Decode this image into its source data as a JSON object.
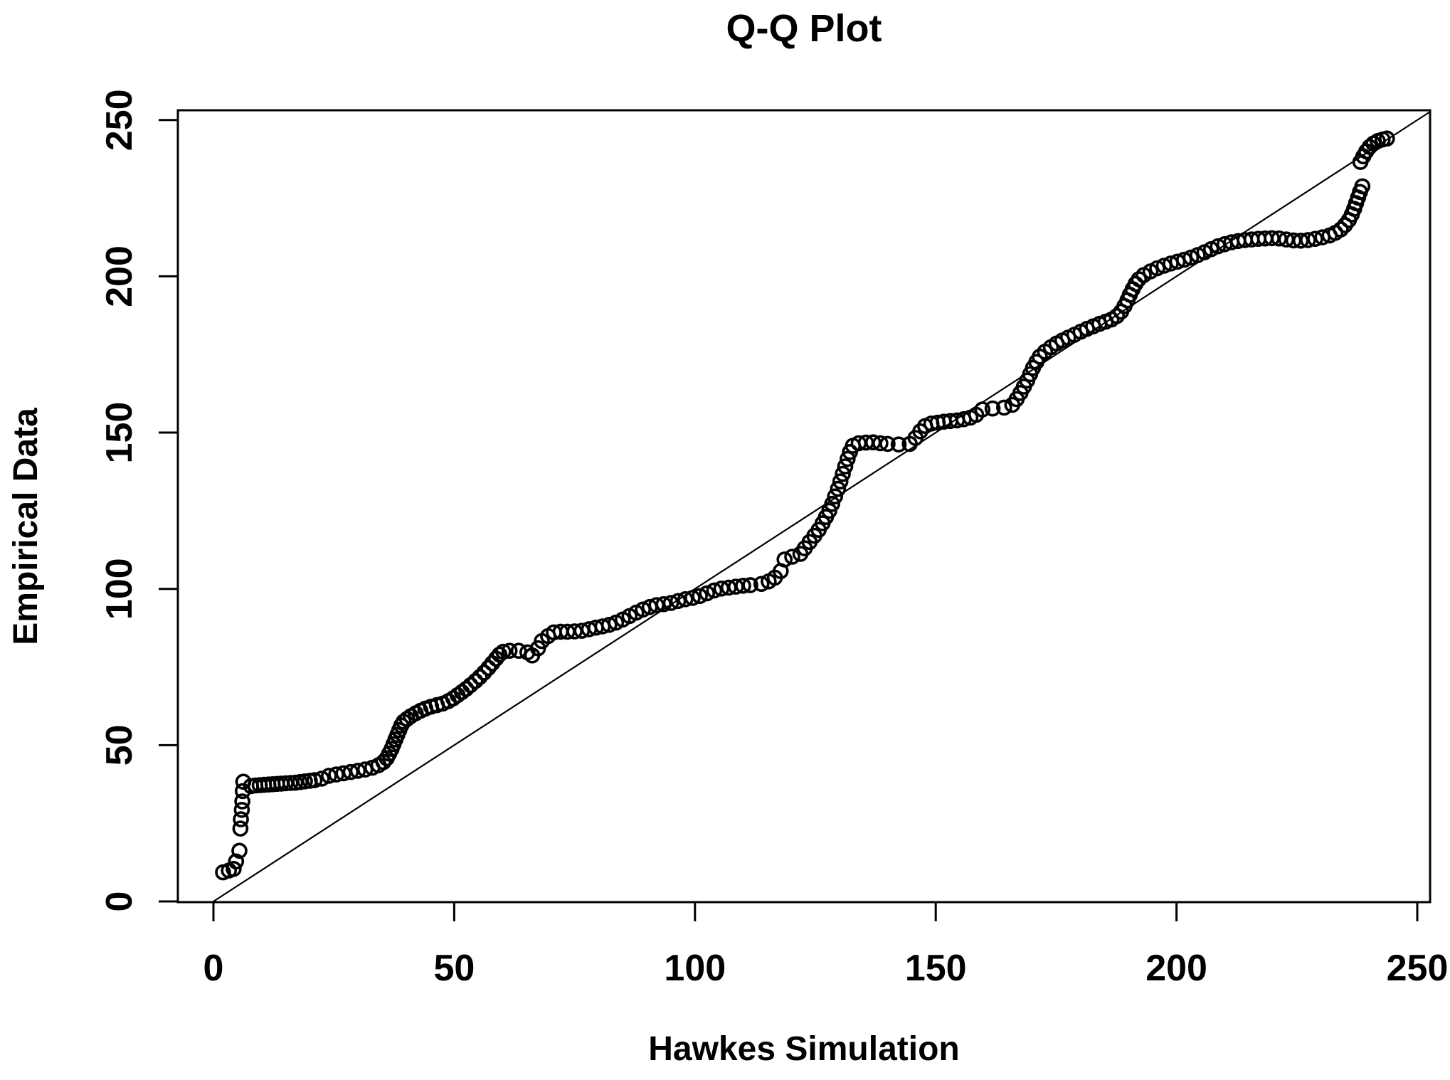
{
  "chart_data": {
    "type": "scatter",
    "title": "Q-Q Plot",
    "xlabel": "Hawkes Simulation",
    "ylabel": "Empirical Data",
    "xlim": [
      -8,
      253
    ],
    "ylim": [
      -1,
      253
    ],
    "x_ticks": [
      0,
      50,
      100,
      150,
      200,
      250
    ],
    "y_ticks": [
      0,
      50,
      100,
      150,
      200,
      250
    ],
    "grid": false,
    "legend": "none",
    "marker": "open-circle",
    "marker_color": "#000000",
    "line_color": "#000000",
    "reference_line": {
      "name": "identity-line",
      "from": [
        0,
        0
      ],
      "to": [
        252.7,
        252.7
      ]
    },
    "points": [
      [
        2.0,
        9.3
      ],
      [
        3.2,
        9.9
      ],
      [
        4.2,
        10.4
      ],
      [
        4.7,
        12.8
      ],
      [
        5.4,
        16.2
      ],
      [
        5.6,
        23.3
      ],
      [
        5.7,
        26.3
      ],
      [
        5.9,
        29.3
      ],
      [
        6.0,
        32.0
      ],
      [
        6.1,
        35.3
      ],
      [
        6.2,
        38.3
      ],
      [
        7.8,
        36.9
      ],
      [
        8.7,
        37.1
      ],
      [
        9.6,
        37.2
      ],
      [
        10.5,
        37.3
      ],
      [
        11.4,
        37.4
      ],
      [
        12.3,
        37.5
      ],
      [
        13.2,
        37.6
      ],
      [
        14.1,
        37.7
      ],
      [
        15.0,
        37.8
      ],
      [
        16.0,
        37.9
      ],
      [
        17.0,
        38.0
      ],
      [
        18.0,
        38.2
      ],
      [
        19.0,
        38.4
      ],
      [
        20.0,
        38.6
      ],
      [
        21.0,
        38.8
      ],
      [
        22.5,
        39.3
      ],
      [
        24.0,
        40.2
      ],
      [
        25.5,
        40.6
      ],
      [
        27.0,
        41.0
      ],
      [
        28.5,
        41.4
      ],
      [
        30.0,
        41.8
      ],
      [
        31.5,
        42.2
      ],
      [
        33.0,
        42.8
      ],
      [
        34.3,
        43.6
      ],
      [
        35.3,
        44.6
      ],
      [
        36.0,
        45.8
      ],
      [
        36.5,
        47.3
      ],
      [
        37.0,
        48.8
      ],
      [
        37.4,
        50.3
      ],
      [
        37.8,
        51.8
      ],
      [
        38.2,
        53.3
      ],
      [
        38.6,
        54.8
      ],
      [
        39.0,
        56.3
      ],
      [
        39.5,
        57.5
      ],
      [
        40.2,
        58.4
      ],
      [
        41.0,
        59.3
      ],
      [
        42.0,
        60.2
      ],
      [
        43.0,
        61.0
      ],
      [
        44.0,
        61.7
      ],
      [
        45.2,
        62.3
      ],
      [
        46.4,
        62.8
      ],
      [
        47.6,
        63.3
      ],
      [
        48.8,
        64.1
      ],
      [
        49.8,
        65.0
      ],
      [
        50.7,
        66.0
      ],
      [
        51.6,
        67.0
      ],
      [
        52.5,
        68.0
      ],
      [
        53.4,
        69.2
      ],
      [
        54.4,
        70.5
      ],
      [
        55.3,
        71.8
      ],
      [
        56.2,
        73.2
      ],
      [
        57.1,
        74.7
      ],
      [
        57.9,
        76.2
      ],
      [
        58.7,
        77.7
      ],
      [
        59.4,
        79.0
      ],
      [
        60.2,
        79.9
      ],
      [
        61.5,
        80.2
      ],
      [
        63.4,
        80.2
      ],
      [
        65.2,
        79.7
      ],
      [
        66.2,
        78.7
      ],
      [
        67.4,
        81.0
      ],
      [
        68.2,
        83.3
      ],
      [
        69.5,
        84.9
      ],
      [
        70.7,
        86.1
      ],
      [
        72.1,
        86.3
      ],
      [
        73.5,
        86.3
      ],
      [
        75.0,
        86.4
      ],
      [
        76.5,
        86.6
      ],
      [
        78.0,
        87.1
      ],
      [
        79.4,
        87.6
      ],
      [
        80.8,
        88.0
      ],
      [
        82.2,
        88.5
      ],
      [
        83.6,
        89.2
      ],
      [
        85.0,
        90.2
      ],
      [
        86.4,
        91.3
      ],
      [
        87.8,
        92.4
      ],
      [
        89.2,
        93.4
      ],
      [
        90.6,
        94.2
      ],
      [
        92.0,
        94.8
      ],
      [
        93.5,
        95.1
      ],
      [
        95.0,
        95.5
      ],
      [
        96.5,
        96.1
      ],
      [
        98.0,
        96.7
      ],
      [
        99.5,
        97.1
      ],
      [
        101.0,
        97.7
      ],
      [
        102.5,
        98.6
      ],
      [
        104.0,
        99.5
      ],
      [
        105.5,
        100.1
      ],
      [
        107.0,
        100.4
      ],
      [
        108.5,
        100.7
      ],
      [
        110.0,
        101.0
      ],
      [
        111.5,
        101.2
      ],
      [
        113.8,
        101.6
      ],
      [
        115.3,
        102.4
      ],
      [
        116.6,
        103.6
      ],
      [
        117.8,
        105.7
      ],
      [
        118.6,
        109.4
      ],
      [
        120.2,
        110.3
      ],
      [
        121.9,
        111.2
      ],
      [
        122.8,
        113.0
      ],
      [
        123.8,
        115.0
      ],
      [
        124.8,
        117.0
      ],
      [
        125.7,
        118.9
      ],
      [
        126.5,
        121.0
      ],
      [
        127.2,
        123.0
      ],
      [
        127.9,
        125.0
      ],
      [
        128.5,
        127.2
      ],
      [
        129.1,
        129.6
      ],
      [
        129.7,
        132.0
      ],
      [
        130.2,
        134.4
      ],
      [
        130.7,
        136.8
      ],
      [
        131.2,
        139.2
      ],
      [
        131.7,
        141.6
      ],
      [
        132.2,
        143.8
      ],
      [
        132.8,
        145.8
      ],
      [
        134.0,
        146.6
      ],
      [
        135.5,
        146.8
      ],
      [
        137.0,
        146.9
      ],
      [
        138.5,
        146.6
      ],
      [
        140.0,
        146.4
      ],
      [
        142.3,
        146.2
      ],
      [
        144.6,
        146.4
      ],
      [
        145.8,
        148.3
      ],
      [
        146.8,
        150.4
      ],
      [
        147.8,
        152.1
      ],
      [
        149.1,
        152.9
      ],
      [
        150.4,
        153.2
      ],
      [
        151.7,
        153.5
      ],
      [
        153.0,
        153.7
      ],
      [
        154.4,
        153.9
      ],
      [
        155.8,
        154.3
      ],
      [
        157.2,
        154.8
      ],
      [
        158.4,
        155.7
      ],
      [
        159.7,
        157.4
      ],
      [
        161.8,
        157.7
      ],
      [
        164.2,
        158.0
      ],
      [
        165.9,
        158.9
      ],
      [
        166.8,
        160.7
      ],
      [
        167.6,
        162.7
      ],
      [
        168.3,
        164.7
      ],
      [
        169.0,
        166.7
      ],
      [
        169.6,
        168.7
      ],
      [
        170.2,
        170.7
      ],
      [
        170.9,
        172.6
      ],
      [
        171.6,
        174.3
      ],
      [
        172.7,
        175.9
      ],
      [
        173.9,
        177.3
      ],
      [
        175.1,
        178.5
      ],
      [
        176.3,
        179.5
      ],
      [
        177.5,
        180.4
      ],
      [
        178.8,
        181.3
      ],
      [
        180.1,
        182.3
      ],
      [
        181.4,
        183.2
      ],
      [
        182.7,
        184.0
      ],
      [
        184.0,
        184.8
      ],
      [
        185.3,
        185.5
      ],
      [
        186.5,
        186.2
      ],
      [
        187.6,
        187.3
      ],
      [
        188.5,
        188.7
      ],
      [
        189.2,
        190.5
      ],
      [
        189.8,
        192.3
      ],
      [
        190.3,
        194.1
      ],
      [
        190.9,
        195.9
      ],
      [
        191.5,
        197.6
      ],
      [
        192.2,
        199.1
      ],
      [
        193.2,
        200.4
      ],
      [
        194.6,
        201.6
      ],
      [
        196.0,
        202.6
      ],
      [
        197.4,
        203.4
      ],
      [
        198.8,
        204.1
      ],
      [
        200.2,
        204.7
      ],
      [
        201.6,
        205.3
      ],
      [
        203.0,
        206.0
      ],
      [
        204.4,
        206.8
      ],
      [
        205.8,
        207.7
      ],
      [
        207.2,
        208.7
      ],
      [
        208.6,
        209.6
      ],
      [
        210.0,
        210.3
      ],
      [
        211.4,
        210.9
      ],
      [
        212.8,
        211.3
      ],
      [
        214.2,
        211.6
      ],
      [
        215.6,
        211.8
      ],
      [
        217.0,
        212.0
      ],
      [
        218.4,
        212.1
      ],
      [
        219.8,
        212.2
      ],
      [
        221.3,
        212.1
      ],
      [
        222.8,
        211.8
      ],
      [
        224.3,
        211.5
      ],
      [
        225.8,
        211.4
      ],
      [
        227.3,
        211.6
      ],
      [
        228.8,
        212.0
      ],
      [
        230.3,
        212.5
      ],
      [
        231.8,
        213.1
      ],
      [
        233.0,
        213.9
      ],
      [
        234.1,
        215.0
      ],
      [
        235.0,
        216.4
      ],
      [
        235.8,
        218.0
      ],
      [
        236.4,
        219.8
      ],
      [
        236.9,
        221.6
      ],
      [
        237.3,
        223.4
      ],
      [
        237.7,
        225.2
      ],
      [
        238.1,
        227.0
      ],
      [
        238.6,
        228.8
      ],
      [
        238.2,
        236.6
      ],
      [
        238.8,
        238.4
      ],
      [
        239.4,
        240.0
      ],
      [
        240.1,
        241.4
      ],
      [
        240.9,
        242.5
      ],
      [
        241.8,
        243.3
      ],
      [
        242.8,
        243.8
      ],
      [
        243.7,
        244.1
      ]
    ]
  }
}
